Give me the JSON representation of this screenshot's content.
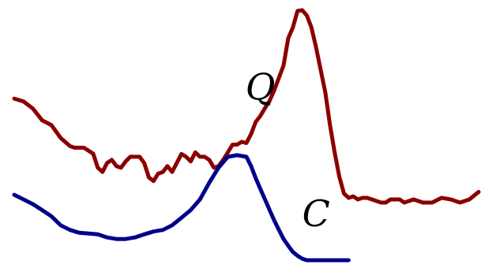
{
  "chart_data": {
    "type": "line",
    "title": "",
    "xlabel": "",
    "ylabel": "",
    "axes_visible": false,
    "grid": false,
    "legend": "none",
    "xlim": [
      0,
      100
    ],
    "ylim": [
      0,
      100
    ],
    "series": [
      {
        "name": "Q",
        "color": "#8b0000",
        "x": [
          0,
          2,
          4,
          6,
          8,
          10,
          12,
          13,
          15,
          17,
          18,
          19,
          20,
          21,
          22,
          23,
          24,
          25,
          26,
          27,
          28,
          29,
          30,
          31,
          32,
          33,
          34,
          35,
          36,
          37,
          38,
          39,
          40,
          41,
          42,
          43,
          44,
          45,
          46,
          47,
          48,
          49,
          50,
          51,
          52,
          53,
          54,
          55,
          56,
          57,
          58,
          59,
          60,
          61,
          62,
          63,
          64,
          65,
          66,
          67,
          68,
          69,
          70,
          71,
          72,
          73,
          74,
          75,
          76,
          77,
          78,
          79,
          80,
          81,
          82,
          83,
          84,
          86,
          88,
          90,
          92,
          94,
          96,
          98,
          100
        ],
        "values": [
          64.3,
          63.2,
          60.5,
          55.9,
          54.1,
          49.1,
          45.9,
          45.3,
          45.3,
          43.0,
          37.6,
          35.9,
          39.4,
          40.6,
          38.2,
          37.6,
          40.0,
          41.8,
          41.8,
          41.8,
          39.4,
          33.8,
          32.4,
          35.3,
          35.9,
          38.2,
          35.9,
          39.4,
          42.9,
          41.8,
          40.0,
          43.5,
          41.8,
          41.8,
          40.6,
          37.6,
          38.2,
          40.6,
          43.5,
          46.5,
          46.5,
          47.6,
          47.1,
          50.6,
          55.3,
          57.6,
          60.6,
          63.5,
          67.6,
          72.4,
          77.1,
          87.6,
          91.8,
          98.2,
          98.5,
          96.5,
          91.8,
          84.1,
          75.3,
          66.5,
          54.1,
          43.5,
          34.1,
          27.6,
          25.9,
          26.5,
          25.3,
          25.9,
          25.9,
          25.3,
          24.7,
          24.1,
          24.1,
          25.3,
          25.3,
          25.3,
          24.1,
          25.3,
          24.1,
          24.1,
          25.9,
          25.3,
          24.1,
          25.3,
          28.2
        ]
      },
      {
        "name": "C",
        "color": "#00008b",
        "x": [
          0,
          2,
          4,
          6,
          8,
          10,
          12,
          14,
          16,
          18,
          20,
          22,
          24,
          26,
          28,
          30,
          32,
          34,
          36,
          38,
          40,
          42,
          44,
          46,
          48,
          50,
          51,
          52,
          53,
          54,
          55,
          56,
          57,
          58,
          59,
          60,
          61,
          62,
          63,
          64,
          65,
          66,
          67,
          68,
          69,
          70,
          71,
          72
        ],
        "values": [
          27.1,
          25.3,
          23.5,
          21.2,
          18.8,
          15.3,
          13.5,
          12.4,
          12.1,
          11.8,
          10.6,
          10.0,
          10.0,
          10.6,
          11.8,
          12.9,
          13.5,
          15.3,
          18.2,
          21.2,
          25.3,
          31.8,
          37.6,
          41.8,
          42.4,
          41.8,
          38.2,
          33.5,
          29.4,
          25.3,
          21.2,
          17.1,
          13.5,
          10.0,
          7.4,
          5.0,
          3.5,
          2.4,
          1.8,
          1.8,
          1.8,
          1.8,
          1.8,
          1.8,
          1.8,
          1.8,
          1.8,
          1.8
        ]
      }
    ],
    "annotations": [
      {
        "text": "Q",
        "x": 53,
        "y": 64,
        "anchor": "middle"
      },
      {
        "text": "C",
        "x": 65,
        "y": 15,
        "anchor": "middle"
      }
    ]
  }
}
